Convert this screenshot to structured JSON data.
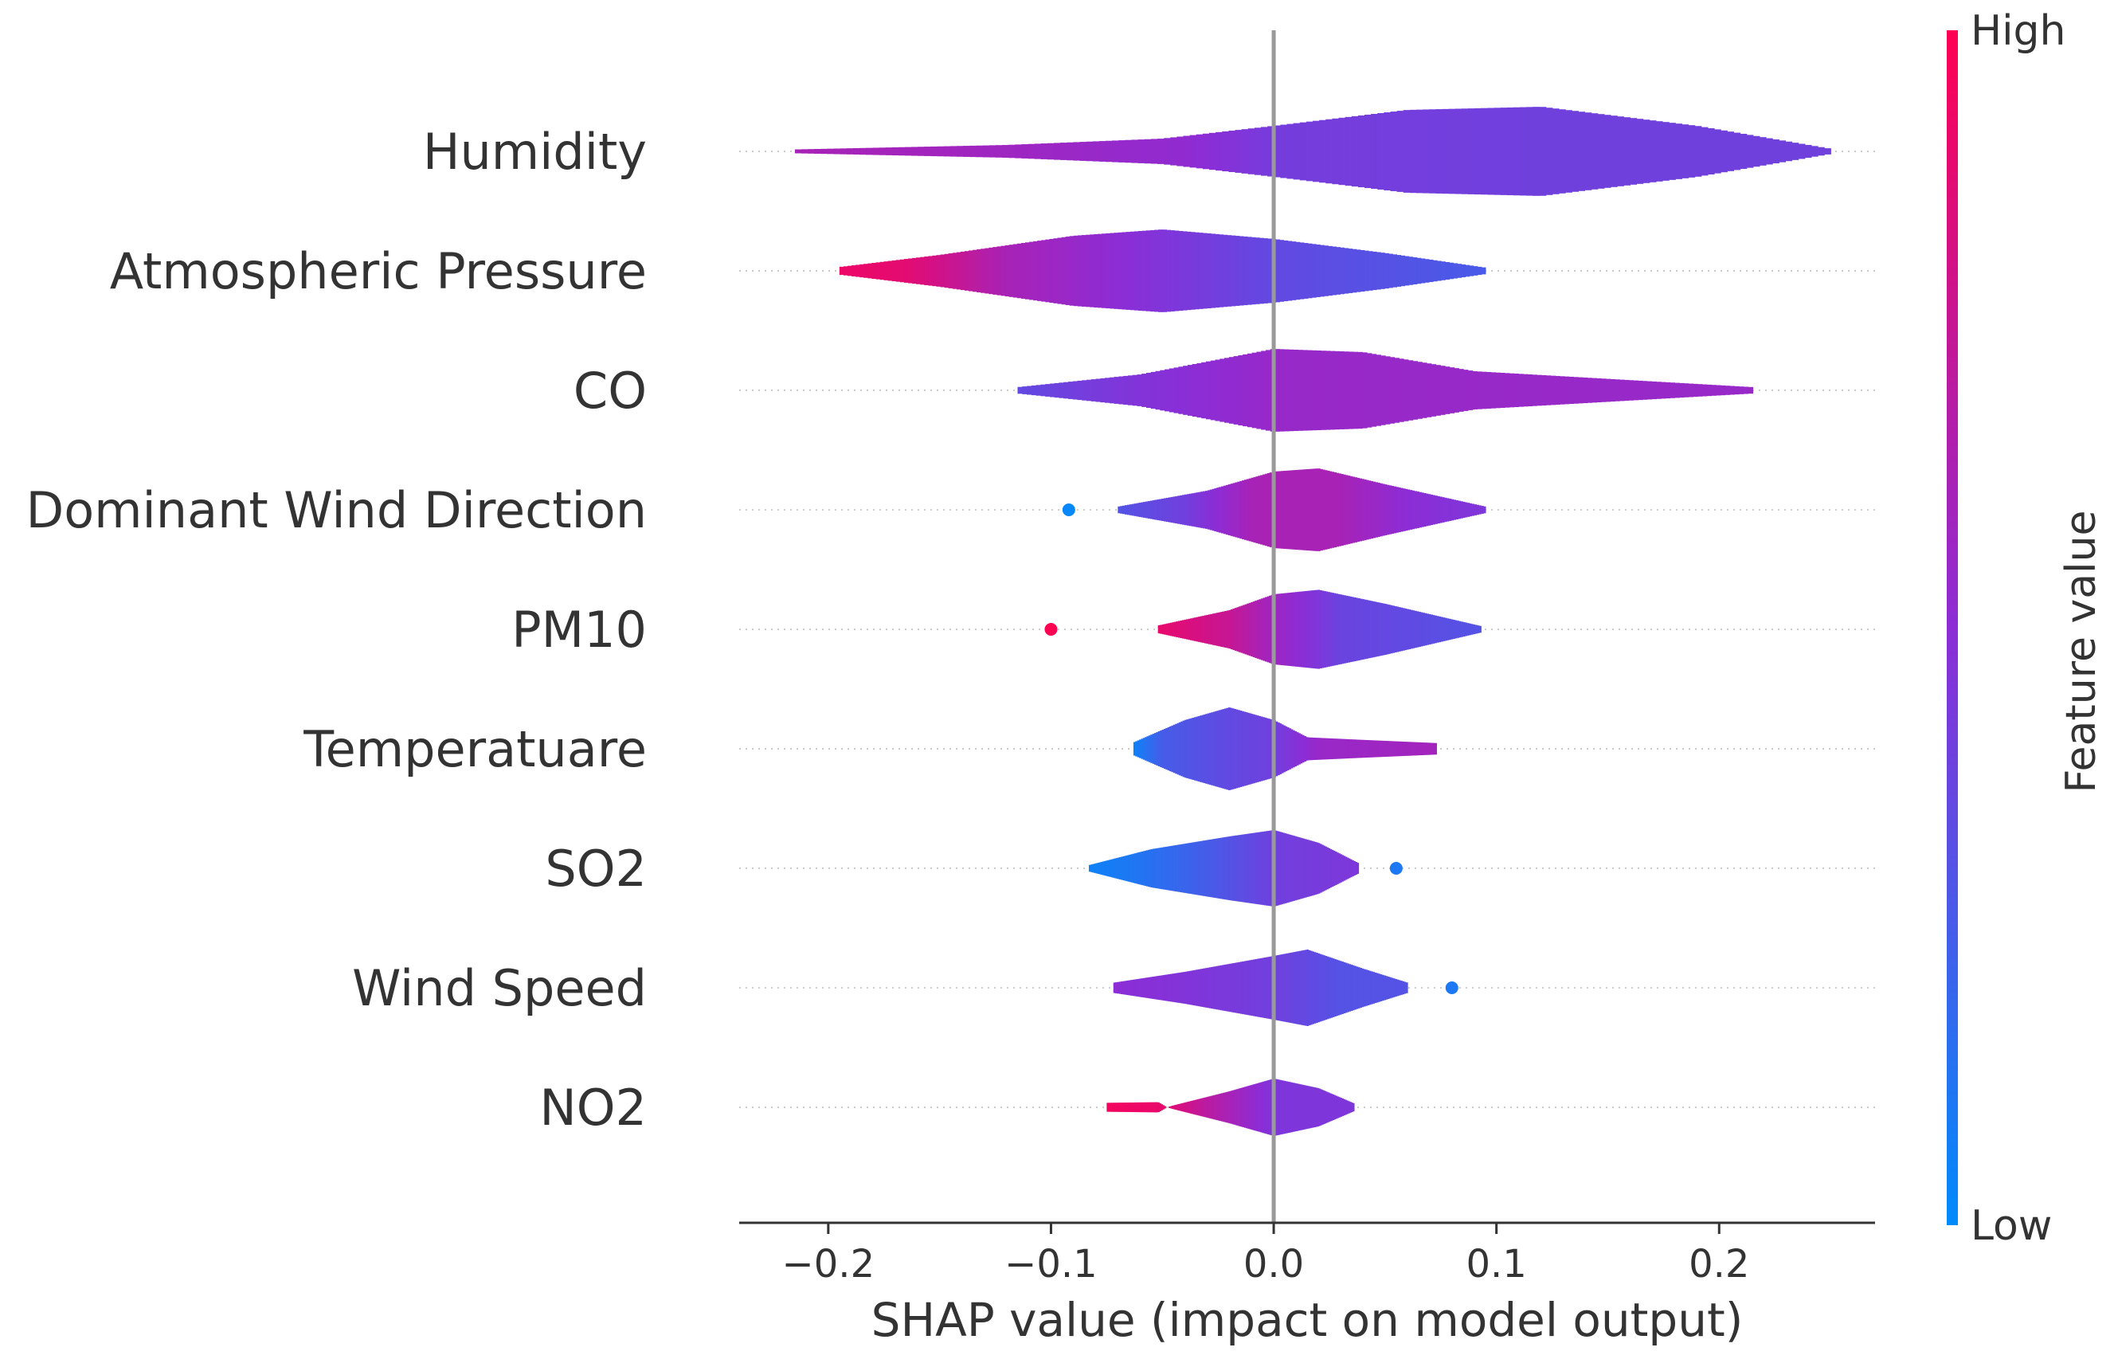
{
  "chart_data": {
    "type": "violin",
    "xlabel": "SHAP value (impact on model output)",
    "xlim": [
      -0.24,
      0.27
    ],
    "xticks": [
      -0.2,
      -0.1,
      0.0,
      0.1,
      0.2
    ],
    "xtick_labels": [
      "−0.2",
      "−0.1",
      "0.0",
      "0.1",
      "0.2"
    ],
    "colorbar": {
      "title": "Feature value",
      "high_label": "High",
      "low_label": "Low",
      "high_color": "#ff0052",
      "mid_color": "#8c2dd6",
      "low_color": "#008bfb"
    },
    "features": [
      {
        "name": "Humidity",
        "range": [
          -0.215,
          0.25
        ],
        "width": [
          [
            -0.215,
            0.003
          ],
          [
            -0.12,
            0.01
          ],
          [
            -0.05,
            0.02
          ],
          [
            0.0,
            0.04
          ],
          [
            0.06,
            0.065
          ],
          [
            0.12,
            0.07
          ],
          [
            0.19,
            0.04
          ],
          [
            0.25,
            0.004
          ]
        ],
        "color": [
          [
            -0.215,
            0.62
          ],
          [
            -0.12,
            0.58
          ],
          [
            -0.04,
            0.52
          ],
          [
            0.0,
            0.42
          ],
          [
            0.12,
            0.4
          ],
          [
            0.25,
            0.4
          ]
        ],
        "points": []
      },
      {
        "name": "Atmospheric Pressure",
        "range": [
          -0.195,
          0.095
        ],
        "width": [
          [
            -0.195,
            0.006
          ],
          [
            -0.15,
            0.025
          ],
          [
            -0.09,
            0.055
          ],
          [
            -0.05,
            0.065
          ],
          [
            0.0,
            0.05
          ],
          [
            0.05,
            0.028
          ],
          [
            0.095,
            0.005
          ]
        ],
        "color": [
          [
            -0.195,
            0.92
          ],
          [
            -0.165,
            0.88
          ],
          [
            -0.12,
            0.62
          ],
          [
            -0.06,
            0.48
          ],
          [
            0.0,
            0.35
          ],
          [
            0.095,
            0.26
          ]
        ],
        "points": []
      },
      {
        "name": "CO",
        "range": [
          -0.115,
          0.215
        ],
        "width": [
          [
            -0.115,
            0.005
          ],
          [
            -0.06,
            0.025
          ],
          [
            0.0,
            0.065
          ],
          [
            0.04,
            0.06
          ],
          [
            0.09,
            0.03
          ],
          [
            0.15,
            0.018
          ],
          [
            0.215,
            0.005
          ]
        ],
        "color": [
          [
            -0.115,
            0.35
          ],
          [
            -0.07,
            0.45
          ],
          [
            0.0,
            0.55
          ],
          [
            0.1,
            0.55
          ],
          [
            0.215,
            0.55
          ]
        ],
        "points": []
      },
      {
        "name": "Dominant Wind Direction",
        "range": [
          -0.07,
          0.095
        ],
        "width": [
          [
            -0.07,
            0.005
          ],
          [
            -0.03,
            0.03
          ],
          [
            0.0,
            0.06
          ],
          [
            0.02,
            0.065
          ],
          [
            0.05,
            0.04
          ],
          [
            0.095,
            0.005
          ]
        ],
        "color": [
          [
            -0.07,
            0.3
          ],
          [
            -0.04,
            0.4
          ],
          [
            -0.01,
            0.62
          ],
          [
            0.03,
            0.62
          ],
          [
            0.06,
            0.5
          ],
          [
            0.095,
            0.45
          ]
        ],
        "points": [
          {
            "x": -0.092,
            "v": 0.02
          }
        ]
      },
      {
        "name": "PM10",
        "range": [
          -0.052,
          0.093
        ],
        "width": [
          [
            -0.052,
            0.006
          ],
          [
            -0.02,
            0.03
          ],
          [
            0.0,
            0.055
          ],
          [
            0.02,
            0.062
          ],
          [
            0.05,
            0.04
          ],
          [
            0.093,
            0.005
          ]
        ],
        "color": [
          [
            -0.052,
            0.9
          ],
          [
            -0.02,
            0.75
          ],
          [
            0.0,
            0.58
          ],
          [
            0.03,
            0.38
          ],
          [
            0.093,
            0.3
          ]
        ],
        "points": [
          {
            "x": -0.1,
            "v": 1.0
          }
        ]
      },
      {
        "name": "Temperatuare",
        "range": [
          -0.063,
          0.073
        ],
        "width": [
          [
            -0.063,
            0.01
          ],
          [
            -0.04,
            0.045
          ],
          [
            -0.02,
            0.065
          ],
          [
            0.0,
            0.045
          ],
          [
            0.015,
            0.018
          ],
          [
            0.04,
            0.014
          ],
          [
            0.073,
            0.009
          ]
        ],
        "color": [
          [
            -0.063,
            0.05
          ],
          [
            -0.05,
            0.25
          ],
          [
            -0.02,
            0.35
          ],
          [
            0.0,
            0.4
          ],
          [
            0.02,
            0.55
          ],
          [
            0.073,
            0.6
          ]
        ],
        "points": []
      },
      {
        "name": "SO2",
        "range": [
          -0.083,
          0.038
        ],
        "width": [
          [
            -0.083,
            0.005
          ],
          [
            -0.055,
            0.03
          ],
          [
            -0.02,
            0.05
          ],
          [
            0.0,
            0.06
          ],
          [
            0.02,
            0.04
          ],
          [
            0.038,
            0.008
          ]
        ],
        "color": [
          [
            -0.083,
            0.05
          ],
          [
            -0.06,
            0.12
          ],
          [
            -0.03,
            0.25
          ],
          [
            0.0,
            0.4
          ],
          [
            0.038,
            0.45
          ]
        ],
        "points": [
          {
            "x": 0.055,
            "v": 0.1
          }
        ]
      },
      {
        "name": "Wind Speed",
        "range": [
          -0.072,
          0.06
        ],
        "width": [
          [
            -0.072,
            0.008
          ],
          [
            -0.04,
            0.025
          ],
          [
            0.0,
            0.05
          ],
          [
            0.015,
            0.06
          ],
          [
            0.04,
            0.03
          ],
          [
            0.06,
            0.008
          ]
        ],
        "color": [
          [
            -0.072,
            0.5
          ],
          [
            -0.03,
            0.45
          ],
          [
            0.0,
            0.4
          ],
          [
            0.03,
            0.3
          ],
          [
            0.06,
            0.3
          ]
        ],
        "points": [
          {
            "x": 0.08,
            "v": 0.1
          }
        ]
      },
      {
        "name": "NO2",
        "range": [
          -0.075,
          0.036
        ],
        "width": [
          [
            -0.075,
            0.007
          ],
          [
            -0.052,
            0.008
          ],
          [
            -0.048,
            0.0
          ],
          [
            -0.045,
            0.003
          ],
          [
            -0.02,
            0.025
          ],
          [
            0.0,
            0.045
          ],
          [
            0.02,
            0.03
          ],
          [
            0.036,
            0.006
          ]
        ],
        "color": [
          [
            -0.075,
            0.95
          ],
          [
            -0.05,
            0.9
          ],
          [
            -0.03,
            0.7
          ],
          [
            0.0,
            0.45
          ],
          [
            0.036,
            0.45
          ]
        ],
        "points": []
      }
    ]
  }
}
